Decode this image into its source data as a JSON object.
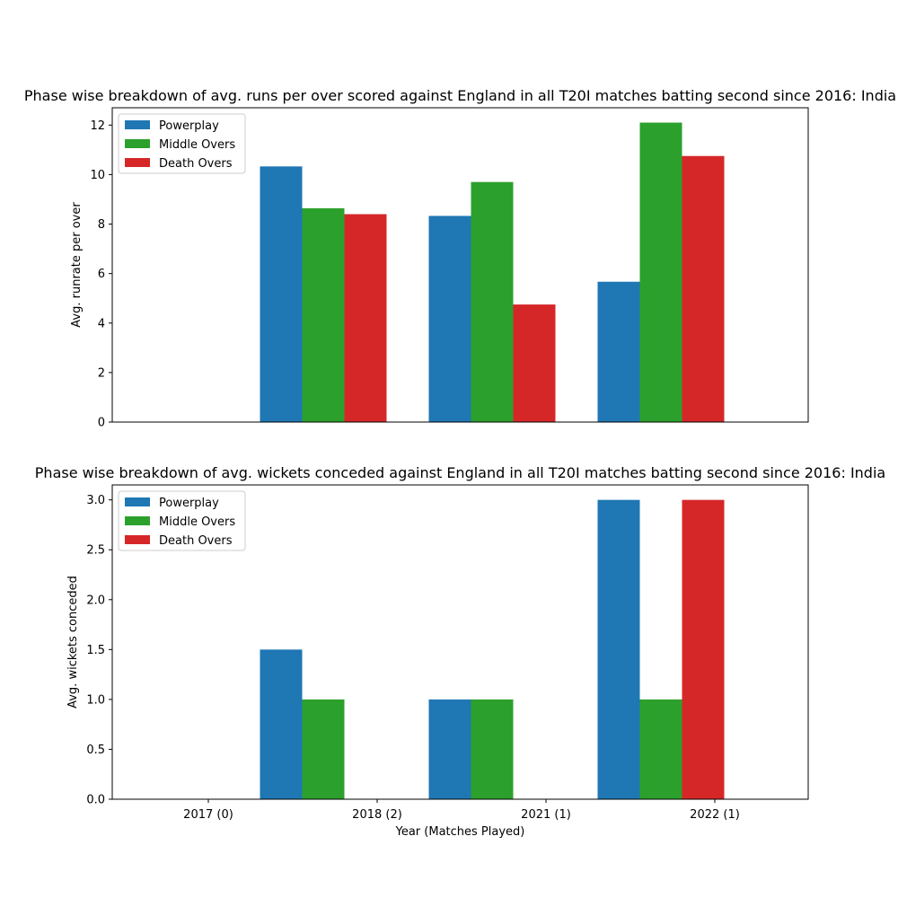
{
  "chart_data": [
    {
      "type": "bar",
      "title": "Phase wise breakdown of avg. runs per over scored against England in all T20I matches batting second since 2016: India",
      "xlabel": "",
      "ylabel": "Avg. runrate per over",
      "categories": [
        "2017 (0)",
        "2018 (2)",
        "2021 (1)",
        "2022 (1)"
      ],
      "show_xticklabels": false,
      "ylim": [
        0,
        12.7
      ],
      "yticks": [
        0,
        2,
        4,
        6,
        8,
        10,
        12
      ],
      "ytick_labels": [
        "0",
        "2",
        "4",
        "6",
        "8",
        "10",
        "12"
      ],
      "grid": false,
      "legend_position": "upper-left",
      "series": [
        {
          "name": "Powerplay",
          "color": "#1f77b4",
          "values": [
            0,
            10.33,
            8.33,
            5.67
          ]
        },
        {
          "name": "Middle Overs",
          "color": "#2ca02c",
          "values": [
            0,
            8.64,
            9.7,
            12.1
          ]
        },
        {
          "name": "Death Overs",
          "color": "#d62728",
          "values": [
            0,
            8.4,
            4.75,
            10.75
          ]
        }
      ]
    },
    {
      "type": "bar",
      "title": "Phase wise breakdown of avg. wickets conceded against England in all T20I matches batting second since 2016: India",
      "xlabel": "Year (Matches Played)",
      "ylabel": "Avg. wickets conceded",
      "categories": [
        "2017 (0)",
        "2018 (2)",
        "2021 (1)",
        "2022 (1)"
      ],
      "show_xticklabels": true,
      "ylim": [
        0,
        3.15
      ],
      "yticks": [
        0,
        0.5,
        1,
        1.5,
        2,
        2.5,
        3
      ],
      "ytick_labels": [
        "0.0",
        "0.5",
        "1.0",
        "1.5",
        "2.0",
        "2.5",
        "3.0"
      ],
      "grid": false,
      "legend_position": "upper-left",
      "series": [
        {
          "name": "Powerplay",
          "color": "#1f77b4",
          "values": [
            0,
            1.5,
            1,
            3
          ]
        },
        {
          "name": "Middle Overs",
          "color": "#2ca02c",
          "values": [
            0,
            1,
            1,
            1
          ]
        },
        {
          "name": "Death Overs",
          "color": "#d62728",
          "values": [
            0,
            0,
            0,
            3
          ]
        }
      ]
    }
  ]
}
